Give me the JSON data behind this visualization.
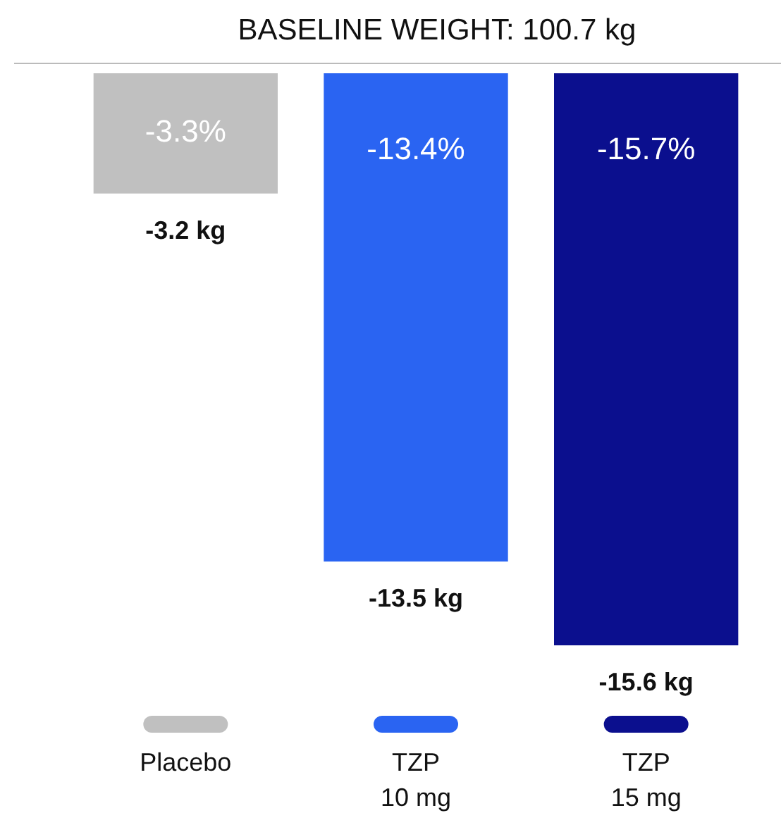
{
  "chart_data": {
    "type": "bar",
    "title": "BASELINE WEIGHT: 100.7 kg",
    "categories": [
      "Placebo",
      "TZP\n10 mg",
      "TZP\n15 mg"
    ],
    "values": [
      -3.3,
      -13.4,
      -15.7
    ],
    "colors": [
      "#c0c0c0",
      "#2a64f2",
      "#0b0f8e"
    ],
    "value_labels": [
      "-3.3%",
      "-13.4%",
      "-15.7%"
    ],
    "annotations": [
      {
        "text": "-3.2 kg",
        "x": "Placebo",
        "y": -3.3
      },
      {
        "text": "-13.5 kg",
        "x": "TZP\n10 mg",
        "y": -13.4
      },
      {
        "text": "-15.6 kg",
        "x": "TZP\n15 mg",
        "y": -15.7
      }
    ],
    "grid": false
  }
}
